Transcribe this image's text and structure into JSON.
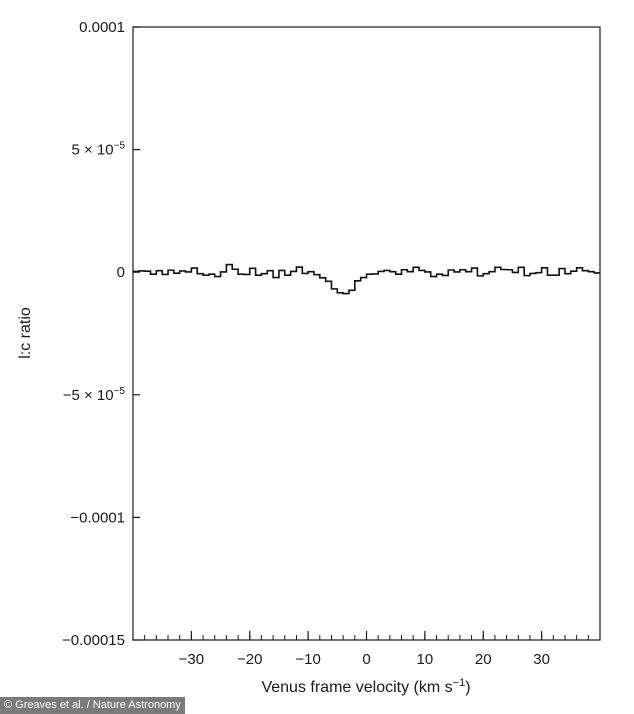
{
  "chart_data": {
    "type": "line",
    "step": true,
    "xlabel_main": "Venus frame velocity (km s",
    "xlabel_sup": "−1",
    "xlabel_tail": ")",
    "ylabel": "l:c ratio",
    "xlim": [
      -40,
      40
    ],
    "ylim": [
      -0.00015,
      0.0001
    ],
    "x_ticks": [
      {
        "value": -30,
        "label": "−30"
      },
      {
        "value": -20,
        "label": "−20"
      },
      {
        "value": -10,
        "label": "−10"
      },
      {
        "value": 0,
        "label": "0"
      },
      {
        "value": 10,
        "label": "10"
      },
      {
        "value": 20,
        "label": "20"
      },
      {
        "value": 30,
        "label": "30"
      }
    ],
    "y_ticks": [
      {
        "value": 0.0001,
        "label": "0.0001"
      },
      {
        "value": 5e-05,
        "label": "5 × 10",
        "sup": "−5"
      },
      {
        "value": 0,
        "label": "0"
      },
      {
        "value": -5e-05,
        "label": "−5 × 10",
        "sup": "−5"
      },
      {
        "value": -0.0001,
        "label": "−0.0001"
      },
      {
        "value": -0.00015,
        "label": "−0.00015"
      }
    ],
    "minor_x_tick_spacing": 2,
    "bin_width": 1.0,
    "x": [
      -39.5,
      -38.5,
      -37.5,
      -36.5,
      -35.5,
      -34.5,
      -33.5,
      -32.5,
      -31.5,
      -30.5,
      -29.5,
      -28.5,
      -27.5,
      -26.5,
      -25.5,
      -24.5,
      -23.5,
      -22.5,
      -21.5,
      -20.5,
      -19.5,
      -18.5,
      -17.5,
      -16.5,
      -15.5,
      -14.5,
      -13.5,
      -12.5,
      -11.5,
      -10.5,
      -9.5,
      -8.5,
      -7.5,
      -6.5,
      -5.5,
      -4.5,
      -3.5,
      -2.5,
      -1.5,
      -0.5,
      0.5,
      1.5,
      2.5,
      3.5,
      4.5,
      5.5,
      6.5,
      7.5,
      8.5,
      9.5,
      10.5,
      11.5,
      12.5,
      13.5,
      14.5,
      15.5,
      16.5,
      17.5,
      18.5,
      19.5,
      20.5,
      21.5,
      22.5,
      23.5,
      24.5,
      25.5,
      26.5,
      27.5,
      28.5,
      29.5,
      30.5,
      31.5,
      32.5,
      33.5,
      34.5,
      35.5,
      36.5,
      37.5,
      38.5,
      39.5
    ],
    "series": [
      {
        "values": [
          3e-07,
          5e-07,
          4e-07,
          -8e-07,
          6e-07,
          -9e-07,
          8e-07,
          -4e-07,
          5e-07,
          1e-07,
          1.7e-06,
          -6e-07,
          -1.2e-06,
          -8e-07,
          -1.8e-06,
          1e-07,
          3.1e-06,
          1.2e-06,
          -8e-07,
          -9e-07,
          1.6e-06,
          -1.2e-06,
          -6e-07,
          6e-07,
          -2.2e-06,
          7e-07,
          -1.2e-06,
          3e-07,
          2.1e-06,
          -5e-07,
          2e-07,
          -1e-06,
          -2.3e-06,
          -3.7e-06,
          -6.8e-06,
          -8.4e-06,
          -8.7e-06,
          -7.4e-06,
          -3.5e-06,
          -2.2e-06,
          -8e-07,
          -7e-07,
          3e-07,
          7e-07,
          2e-07,
          -8e-07,
          1e-06,
          2e-07,
          2e-06,
          7e-07,
          1e-07,
          -1.8e-06,
          -8e-07,
          -1.3e-06,
          9e-07,
          1e-07,
          1e-06,
          2e-07,
          1.7e-06,
          -1.5e-06,
          -6e-07,
          2e-07,
          2e-06,
          1.1e-06,
          1e-06,
          -1e-07,
          2e-06,
          -1.4e-06,
          -5e-07,
          -2e-07,
          1.8e-06,
          -1.2e-06,
          -1.2e-06,
          1.5e-06,
          -6e-07,
          4e-07,
          1.8e-06,
          6e-07,
          2e-07,
          -3e-07
        ]
      }
    ]
  },
  "credit": "© Greaves et al. / Nature Astronomy"
}
